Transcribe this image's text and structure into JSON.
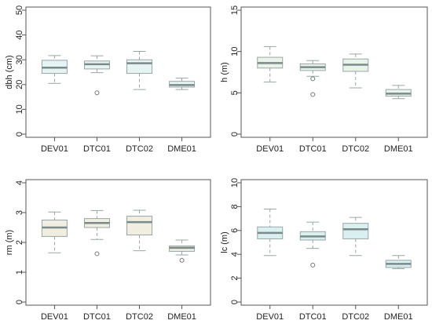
{
  "chart_data": [
    {
      "type": "boxplot",
      "ylabel": "dbh (cm)",
      "ylim": [
        0,
        50
      ],
      "yticks": [
        0,
        10,
        20,
        30,
        40,
        50
      ],
      "categories": [
        "DEV01",
        "DTC01",
        "DTC02",
        "DME01"
      ],
      "box_color": "#e6f4f4",
      "boxes": [
        {
          "min": 20.5,
          "q1": 24.5,
          "median": 26.8,
          "q3": 29.8,
          "max": 31.7,
          "outliers": []
        },
        {
          "min": 24.8,
          "q1": 26.3,
          "median": 28.2,
          "q3": 29.5,
          "max": 31.6,
          "outliers": [
            16.7
          ]
        },
        {
          "min": 18.0,
          "q1": 24.5,
          "median": 28.6,
          "q3": 30.0,
          "max": 33.4,
          "outliers": []
        },
        {
          "min": 18.0,
          "q1": 19.0,
          "median": 19.8,
          "q3": 21.3,
          "max": 22.6,
          "outliers": []
        }
      ]
    },
    {
      "type": "boxplot",
      "ylabel": "h (m)",
      "ylim": [
        0,
        15
      ],
      "yticks": [
        0,
        5,
        10,
        15
      ],
      "categories": [
        "DEV01",
        "DTC01",
        "DTC02",
        "DME01"
      ],
      "box_color": "#e9f3ea",
      "boxes": [
        {
          "min": 6.3,
          "q1": 8.0,
          "median": 8.6,
          "q3": 9.3,
          "max": 10.6,
          "outliers": []
        },
        {
          "min": 7.0,
          "q1": 7.7,
          "median": 8.1,
          "q3": 8.5,
          "max": 8.9,
          "outliers": [
            6.7,
            4.8
          ]
        },
        {
          "min": 5.6,
          "q1": 7.6,
          "median": 8.4,
          "q3": 9.1,
          "max": 9.7,
          "outliers": []
        },
        {
          "min": 4.3,
          "q1": 4.6,
          "median": 4.9,
          "q3": 5.4,
          "max": 5.9,
          "outliers": []
        }
      ]
    },
    {
      "type": "boxplot",
      "ylabel": "rm (m)",
      "ylim": [
        0,
        4
      ],
      "yticks": [
        0,
        1,
        2,
        3,
        4
      ],
      "categories": [
        "DEV01",
        "DTC01",
        "DTC02",
        "DME01"
      ],
      "box_color": "#efeee0",
      "boxes": [
        {
          "min": 1.65,
          "q1": 2.2,
          "median": 2.5,
          "q3": 2.75,
          "max": 3.02,
          "outliers": []
        },
        {
          "min": 2.1,
          "q1": 2.5,
          "median": 2.65,
          "q3": 2.8,
          "max": 3.07,
          "outliers": [
            1.62
          ]
        },
        {
          "min": 1.72,
          "q1": 2.25,
          "median": 2.68,
          "q3": 2.88,
          "max": 3.08,
          "outliers": []
        },
        {
          "min": 1.58,
          "q1": 1.7,
          "median": 1.82,
          "q3": 1.88,
          "max": 2.08,
          "outliers": [
            1.4
          ]
        }
      ]
    },
    {
      "type": "boxplot",
      "ylabel": "lc (m)",
      "ylim": [
        0,
        10
      ],
      "yticks": [
        0,
        2,
        4,
        6,
        8,
        10
      ],
      "categories": [
        "DEV01",
        "DTC01",
        "DTC02",
        "DME01"
      ],
      "box_color": "#d9eff0",
      "boxes": [
        {
          "min": 3.9,
          "q1": 5.3,
          "median": 5.8,
          "q3": 6.3,
          "max": 7.8,
          "outliers": []
        },
        {
          "min": 4.5,
          "q1": 5.2,
          "median": 5.5,
          "q3": 5.9,
          "max": 6.7,
          "outliers": [
            3.1
          ]
        },
        {
          "min": 3.9,
          "q1": 5.3,
          "median": 6.1,
          "q3": 6.6,
          "max": 7.1,
          "outliers": []
        },
        {
          "min": 2.8,
          "q1": 2.9,
          "median": 3.2,
          "q3": 3.5,
          "max": 3.9,
          "outliers": []
        }
      ]
    }
  ]
}
